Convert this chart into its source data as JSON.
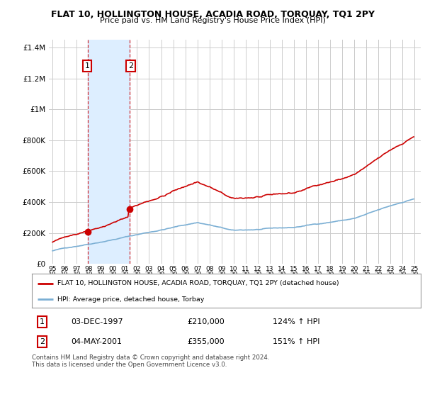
{
  "title": "FLAT 10, HOLLINGTON HOUSE, ACADIA ROAD, TORQUAY, TQ1 2PY",
  "subtitle": "Price paid vs. HM Land Registry's House Price Index (HPI)",
  "legend_line1": "FLAT 10, HOLLINGTON HOUSE, ACADIA ROAD, TORQUAY, TQ1 2PY (detached house)",
  "legend_line2": "HPI: Average price, detached house, Torbay",
  "footnote": "Contains HM Land Registry data © Crown copyright and database right 2024.\nThis data is licensed under the Open Government Licence v3.0.",
  "sale1_date": "03-DEC-1997",
  "sale1_price": "£210,000",
  "sale1_hpi": "124% ↑ HPI",
  "sale2_date": "04-MAY-2001",
  "sale2_price": "£355,000",
  "sale2_hpi": "151% ↑ HPI",
  "red_color": "#cc0000",
  "blue_color": "#7bafd4",
  "highlight_color": "#ddeeff",
  "background_color": "#ffffff",
  "grid_color": "#cccccc",
  "sale1_x": 1997.92,
  "sale1_y": 210000,
  "sale2_x": 2001.37,
  "sale2_y": 355000,
  "ylim": [
    0,
    1450000
  ],
  "xlim": [
    1994.7,
    2025.5
  ]
}
